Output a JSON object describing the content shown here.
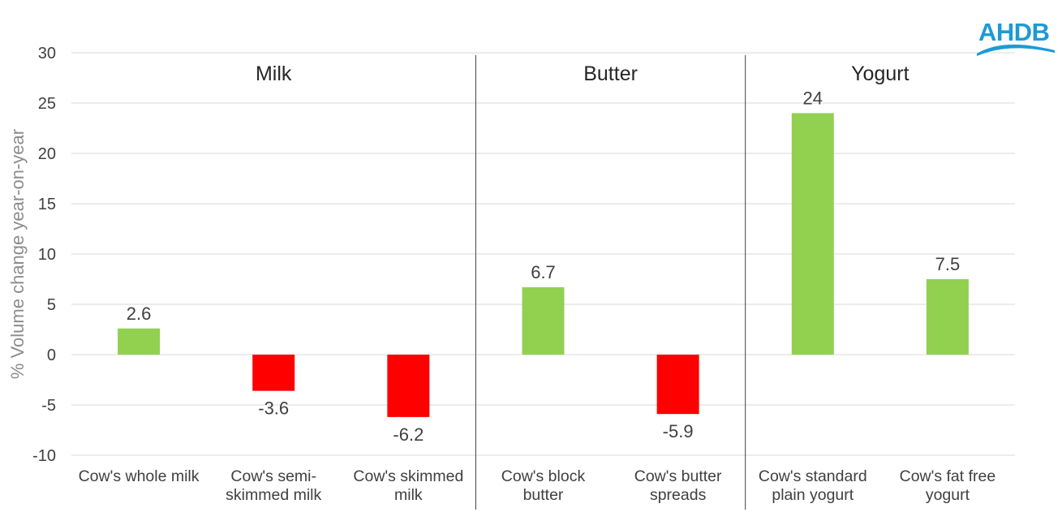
{
  "logo": {
    "text": "AHDB",
    "color": "#1d9ad6"
  },
  "chart_data": {
    "type": "bar",
    "ylabel": "% Volume change  year-on-year",
    "xlabel": "",
    "ylim": [
      -10,
      30
    ],
    "yticks": [
      30,
      25,
      20,
      15,
      10,
      5,
      0,
      -5,
      -10
    ],
    "grid": true,
    "positive_color": "#92d050",
    "negative_color": "#ff0000",
    "categories": [
      [
        "Cow's whole milk"
      ],
      [
        "Cow's semi-",
        "skimmed milk"
      ],
      [
        "Cow's skimmed",
        "milk"
      ],
      [
        "Cow's block",
        "butter"
      ],
      [
        "Cow's butter",
        "spreads"
      ],
      [
        "Cow's standard",
        "plain yogurt"
      ],
      [
        "Cow's fat free",
        "yogurt"
      ]
    ],
    "values": [
      2.6,
      -3.6,
      -6.2,
      6.7,
      -5.9,
      24,
      7.5
    ],
    "data_labels": [
      "2.6",
      "-3.6",
      "-6.2",
      "6.7",
      "-5.9",
      "24",
      "7.5"
    ],
    "groups": [
      {
        "name": "Milk",
        "count": 3
      },
      {
        "name": "Butter",
        "count": 2
      },
      {
        "name": "Yogurt",
        "count": 2
      }
    ]
  }
}
